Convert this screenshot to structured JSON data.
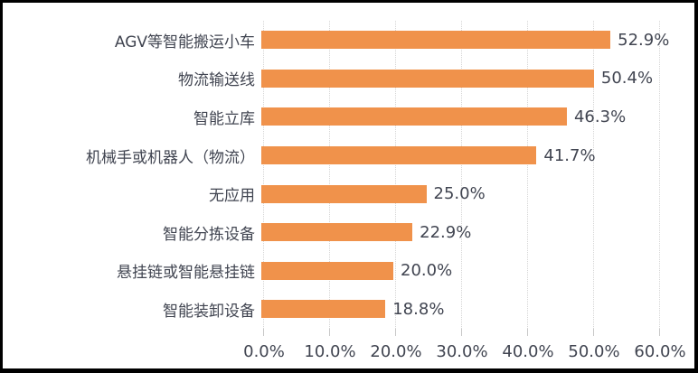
{
  "chart_data": {
    "type": "bar",
    "orientation": "horizontal",
    "title": "",
    "xlabel": "",
    "ylabel": "",
    "categories": [
      "AGV等智能搬运小车",
      "物流输送线",
      "智能立库",
      "机械手或机器人（物流）",
      "无应用",
      "智能分拣设备",
      "悬挂链或智能悬挂链",
      "智能装卸设备"
    ],
    "values": [
      52.9,
      50.4,
      46.3,
      41.7,
      25.0,
      22.9,
      20.0,
      18.8
    ],
    "value_labels": [
      "52.9%",
      "50.4%",
      "46.3%",
      "41.7%",
      "25.0%",
      "22.9%",
      "20.0%",
      "18.8%"
    ],
    "x_ticks": [
      0,
      10,
      20,
      30,
      40,
      50,
      60
    ],
    "x_tick_labels": [
      "0.0%",
      "10.0%",
      "20.0%",
      "30.0%",
      "40.0%",
      "50.0%",
      "60.0%"
    ],
    "xlim": [
      0,
      60
    ],
    "grid": "vertical dotted",
    "legend": "none"
  },
  "colors": {
    "bar": "#F0924B",
    "text": "#414551",
    "gridline": "#D6D6D6",
    "frame": "#000000",
    "background": "#FFFFFF"
  }
}
